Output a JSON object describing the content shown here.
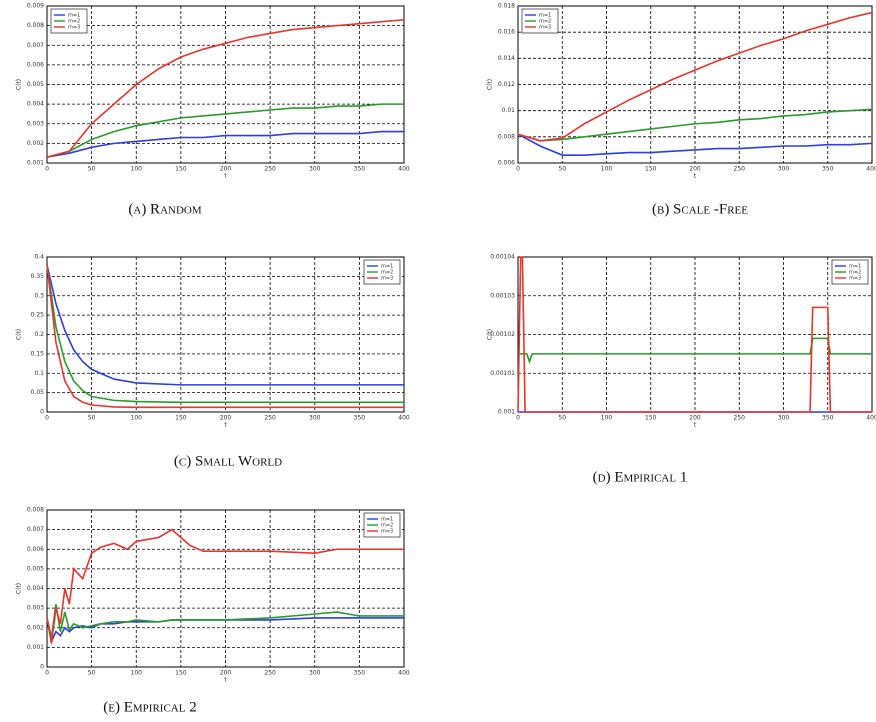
{
  "chart_data": [
    {
      "type": "line",
      "caption": "(a) Random",
      "xlabel": "t",
      "ylabel": "C(t)",
      "legend": "upper left",
      "grid": true,
      "x": [
        0,
        25,
        50,
        75,
        100,
        125,
        150,
        175,
        200,
        225,
        250,
        275,
        300,
        325,
        350,
        375,
        400
      ],
      "xlim": [
        0,
        400
      ],
      "xticks": [
        0,
        50,
        100,
        150,
        200,
        250,
        300,
        350,
        400
      ],
      "ylim": [
        0.001,
        0.009
      ],
      "yticks": [
        0.001,
        0.002,
        0.003,
        0.004,
        0.005,
        0.006,
        0.007,
        0.008,
        0.009
      ],
      "series": [
        {
          "name": "m=1",
          "color": "#2a3fe0",
          "values": [
            0.0013,
            0.0015,
            0.0018,
            0.002,
            0.0021,
            0.0022,
            0.0023,
            0.0023,
            0.0024,
            0.0024,
            0.0024,
            0.0025,
            0.0025,
            0.0025,
            0.0025,
            0.0026,
            0.0026
          ]
        },
        {
          "name": "m=2",
          "color": "#2a9a2a",
          "values": [
            0.0013,
            0.0016,
            0.0022,
            0.0026,
            0.0029,
            0.0031,
            0.0033,
            0.0034,
            0.0035,
            0.0036,
            0.0037,
            0.0038,
            0.0038,
            0.0039,
            0.0039,
            0.004,
            0.004
          ]
        },
        {
          "name": "m=3",
          "color": "#e8342a",
          "values": [
            0.0013,
            0.0016,
            0.003,
            0.004,
            0.005,
            0.0058,
            0.0064,
            0.0068,
            0.0071,
            0.0074,
            0.0076,
            0.0078,
            0.0079,
            0.008,
            0.0081,
            0.0082,
            0.0083
          ]
        }
      ]
    },
    {
      "type": "line",
      "caption": "(b) Scale -Free",
      "xlabel": "t",
      "ylabel": "C(t)",
      "legend": "upper left",
      "grid": true,
      "x": [
        0,
        25,
        50,
        75,
        100,
        125,
        150,
        175,
        200,
        225,
        250,
        275,
        300,
        325,
        350,
        375,
        400
      ],
      "xlim": [
        0,
        400
      ],
      "xticks": [
        0,
        50,
        100,
        150,
        200,
        250,
        300,
        350,
        400
      ],
      "ylim": [
        0.006,
        0.018
      ],
      "yticks": [
        0.006,
        0.008,
        0.01,
        0.012,
        0.014,
        0.016,
        0.018
      ],
      "series": [
        {
          "name": "m=1",
          "color": "#2a3fe0",
          "values": [
            0.0082,
            0.0073,
            0.0066,
            0.0066,
            0.0067,
            0.0068,
            0.0068,
            0.0069,
            0.007,
            0.0071,
            0.0071,
            0.0072,
            0.0073,
            0.0073,
            0.0074,
            0.0074,
            0.0075
          ]
        },
        {
          "name": "m=2",
          "color": "#2a9a2a",
          "values": [
            0.0082,
            0.0077,
            0.0078,
            0.008,
            0.0082,
            0.0084,
            0.0086,
            0.0088,
            0.009,
            0.0091,
            0.0093,
            0.0094,
            0.0096,
            0.0097,
            0.0099,
            0.01,
            0.0101
          ]
        },
        {
          "name": "m=3",
          "color": "#e8342a",
          "values": [
            0.0082,
            0.0077,
            0.0079,
            0.009,
            0.0099,
            0.0108,
            0.0116,
            0.0124,
            0.0131,
            0.0138,
            0.0144,
            0.015,
            0.0155,
            0.0161,
            0.0166,
            0.0171,
            0.0175
          ]
        }
      ]
    },
    {
      "type": "line",
      "caption": "(c) Small World",
      "xlabel": "t",
      "ylabel": "C(t)",
      "legend": "upper right",
      "grid": true,
      "x": [
        0,
        10,
        20,
        30,
        40,
        50,
        75,
        100,
        150,
        200,
        300,
        400
      ],
      "xlim": [
        0,
        400
      ],
      "xticks": [
        0,
        50,
        100,
        150,
        200,
        250,
        300,
        350,
        400
      ],
      "ylim": [
        0,
        0.4
      ],
      "yticks": [
        0,
        0.05,
        0.1,
        0.15,
        0.2,
        0.25,
        0.3,
        0.35,
        0.4
      ],
      "series": [
        {
          "name": "m=1",
          "color": "#2a3fe0",
          "values": [
            0.38,
            0.28,
            0.21,
            0.16,
            0.13,
            0.11,
            0.085,
            0.075,
            0.07,
            0.07,
            0.07,
            0.07
          ]
        },
        {
          "name": "m=2",
          "color": "#2a9a2a",
          "values": [
            0.38,
            0.22,
            0.13,
            0.08,
            0.055,
            0.04,
            0.03,
            0.027,
            0.025,
            0.025,
            0.025,
            0.025
          ]
        },
        {
          "name": "m=3",
          "color": "#e8342a",
          "values": [
            0.38,
            0.18,
            0.08,
            0.04,
            0.025,
            0.018,
            0.013,
            0.012,
            0.012,
            0.012,
            0.012,
            0.012
          ]
        }
      ]
    },
    {
      "type": "line",
      "caption": "(d) Empirical 1",
      "xlabel": "t",
      "ylabel": "C(t)",
      "legend": "upper right",
      "grid": true,
      "xlim": [
        0,
        400
      ],
      "xticks": [
        0,
        50,
        100,
        150,
        200,
        250,
        300,
        350,
        400
      ],
      "ylim": [
        0.001,
        0.00104
      ],
      "yticks": [
        0.001,
        0.00101,
        0.00102,
        0.00103,
        0.00104
      ],
      "series": [
        {
          "name": "m=1",
          "color": "#2a3fe0",
          "x": [
            0,
            400
          ],
          "values": [
            0.001,
            0.001
          ]
        },
        {
          "name": "m=2",
          "color": "#2a9a2a",
          "x": [
            0,
            10,
            13,
            16,
            330,
            333,
            350,
            353,
            400
          ],
          "values": [
            0.001015,
            0.001015,
            0.001013,
            0.001015,
            0.001015,
            0.001019,
            0.001019,
            0.001015,
            0.001015
          ]
        },
        {
          "name": "m=3",
          "color": "#e8342a",
          "x": [
            0,
            3,
            5,
            8,
            330,
            333,
            350,
            353,
            400
          ],
          "values": [
            0.001,
            0.00104,
            0.00104,
            0.001,
            0.001,
            0.001027,
            0.001027,
            0.001,
            0.001
          ]
        }
      ]
    },
    {
      "type": "line",
      "caption": "(e) Empirical 2",
      "xlabel": "t",
      "ylabel": "C(t)",
      "legend": "upper right",
      "grid": true,
      "x": [
        0,
        5,
        10,
        15,
        20,
        25,
        30,
        40,
        50,
        60,
        75,
        90,
        100,
        125,
        140,
        150,
        160,
        175,
        200,
        250,
        300,
        325,
        350,
        375,
        400
      ],
      "xlim": [
        0,
        400
      ],
      "xticks": [
        0,
        50,
        100,
        150,
        200,
        250,
        300,
        350,
        400
      ],
      "ylim": [
        0,
        0.008
      ],
      "yticks": [
        0,
        0.001,
        0.002,
        0.003,
        0.004,
        0.005,
        0.006,
        0.007,
        0.008
      ],
      "series": [
        {
          "name": "m=1",
          "color": "#2a3fe0",
          "values": [
            0.0025,
            0.0013,
            0.0018,
            0.0016,
            0.002,
            0.0018,
            0.002,
            0.0021,
            0.002,
            0.0022,
            0.0022,
            0.0023,
            0.0023,
            0.0023,
            0.0024,
            0.0024,
            0.0024,
            0.0024,
            0.0024,
            0.0024,
            0.0025,
            0.0025,
            0.0025,
            0.0025,
            0.0025
          ]
        },
        {
          "name": "m=2",
          "color": "#2a9a2a",
          "values": [
            0.0025,
            0.0015,
            0.0032,
            0.0018,
            0.0028,
            0.0019,
            0.0022,
            0.002,
            0.0021,
            0.0022,
            0.0023,
            0.0023,
            0.0024,
            0.0023,
            0.0024,
            0.0024,
            0.0024,
            0.0024,
            0.0024,
            0.0025,
            0.0027,
            0.0028,
            0.0026,
            0.0026,
            0.0026
          ]
        },
        {
          "name": "m=3",
          "color": "#e8342a",
          "values": [
            0.0025,
            0.0012,
            0.003,
            0.0022,
            0.004,
            0.0032,
            0.005,
            0.0045,
            0.0058,
            0.0061,
            0.0063,
            0.006,
            0.0064,
            0.0066,
            0.007,
            0.0066,
            0.0062,
            0.0059,
            0.0059,
            0.0059,
            0.0058,
            0.006,
            0.006,
            0.006,
            0.006
          ]
        }
      ]
    }
  ]
}
